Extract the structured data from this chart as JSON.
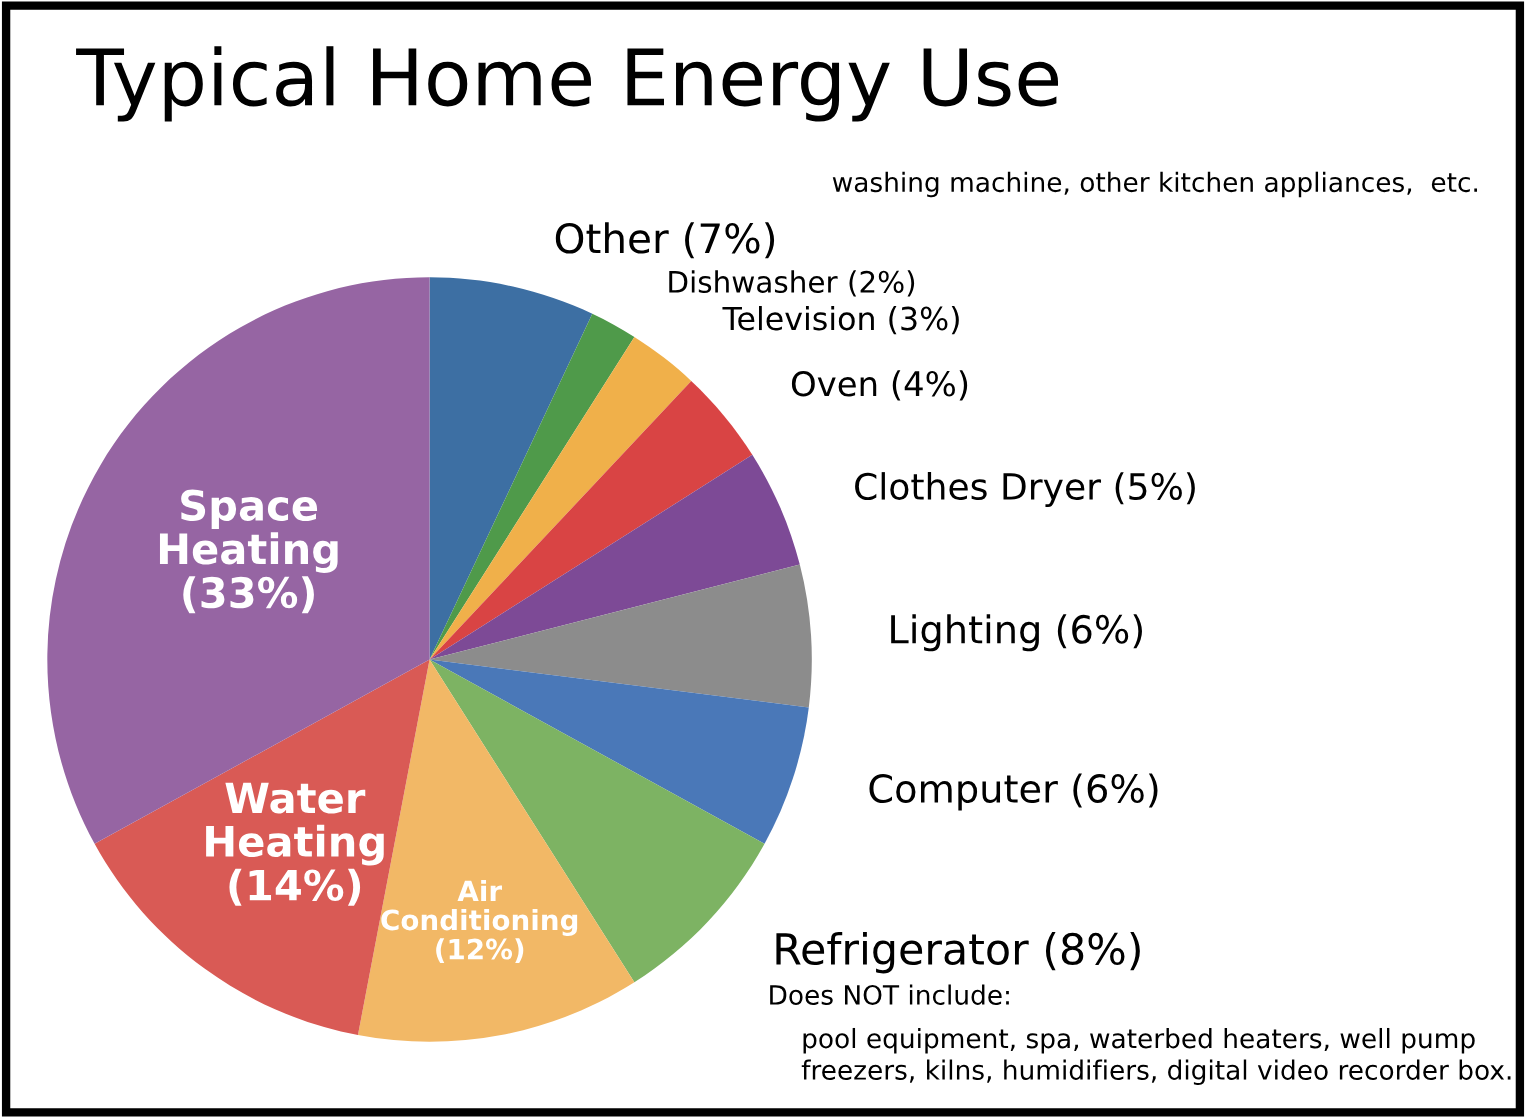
{
  "chart_data": {
    "type": "pie",
    "title": "Typical Home Energy Use",
    "categories": [
      "Other (7%)",
      "Dishwasher (2%)",
      "Television (3%)",
      "Oven (4%)",
      "Clothes Dryer (5%)",
      "Lighting (6%)",
      "Computer (6%)",
      "Refrigerator (8%)",
      "Air\nConditioning\n(12%)",
      "Water\nHeating\n(14%)",
      "Space\nHeating\n(33%)"
    ],
    "values": [
      7,
      2,
      3,
      4,
      5,
      6,
      6,
      8,
      12,
      14,
      33
    ],
    "colors": [
      "#3d6fa3",
      "#4f9a4a",
      "#f0b04a",
      "#d94444",
      "#7d4a96",
      "#8c8c8c",
      "#4a78b8",
      "#7db363",
      "#f2b866",
      "#d95a55",
      "#9665a3"
    ],
    "annotations": [
      "washing machine, other kitchen appliances,  etc.",
      "Does NOT include:",
      "pool equipment, spa, waterbed heaters, well pump\nfreezers, kilns, humidifiers, digital video recorder box."
    ]
  }
}
